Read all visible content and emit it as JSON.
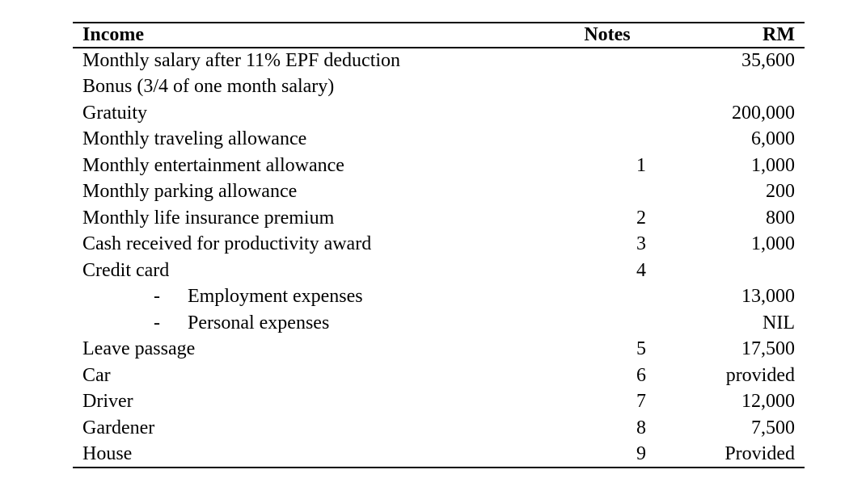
{
  "page": {
    "background_color": "#ffffff",
    "text_color": "#000000",
    "rule_color": "#000000"
  },
  "table": {
    "headers": {
      "income": "Income",
      "notes": "Notes",
      "rm": "RM"
    },
    "rows": [
      {
        "income": "Monthly salary after 11% EPF deduction",
        "note": "",
        "rm": "35,600"
      },
      {
        "income": "Bonus (3/4 of one month salary)",
        "note": "",
        "rm": ""
      },
      {
        "income": "Gratuity",
        "note": "",
        "rm": "200,000"
      },
      {
        "income": "Monthly traveling allowance",
        "note": "",
        "rm": "6,000"
      },
      {
        "income": "Monthly entertainment allowance",
        "note": "1",
        "rm": "1,000"
      },
      {
        "income": "Monthly parking allowance",
        "note": "",
        "rm": "200"
      },
      {
        "income": "Monthly life insurance premium",
        "note": "2",
        "rm": "800"
      },
      {
        "income": "Cash received for productivity award",
        "note": "3",
        "rm": "1,000"
      },
      {
        "income": "Credit card",
        "note": "4",
        "rm": ""
      },
      {
        "income": "Employment expenses",
        "bullet": "-",
        "note": "",
        "rm": "13,000"
      },
      {
        "income": "Personal expenses",
        "bullet": "-",
        "note": "",
        "rm": "NIL"
      },
      {
        "income": "Leave passage",
        "note": "5",
        "rm": "17,500"
      },
      {
        "income": "Car",
        "note": "6",
        "rm": "provided"
      },
      {
        "income": "Driver",
        "note": "7",
        "rm": "12,000"
      },
      {
        "income": "Gardener",
        "note": "8",
        "rm": "7,500"
      },
      {
        "income": "House",
        "note": "9",
        "rm": "Provided"
      }
    ]
  }
}
